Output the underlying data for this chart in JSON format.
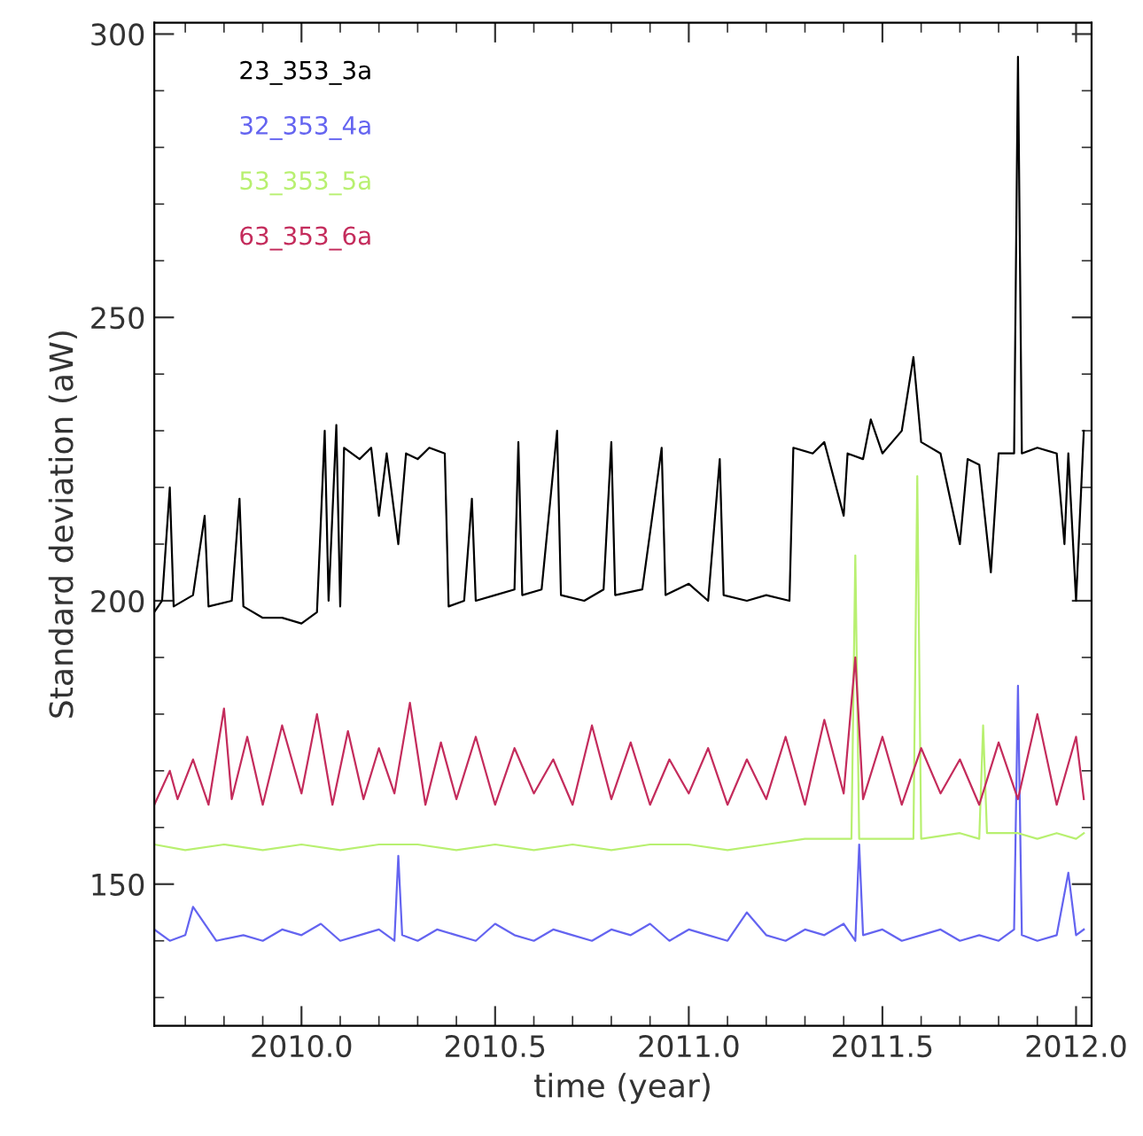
{
  "chart_data": {
    "type": "line",
    "xlabel": "time (year)",
    "ylabel": "Standard deviation (aW)",
    "xlim": [
      2009.62,
      2012.04
    ],
    "ylim": [
      125,
      302
    ],
    "xticks": [
      {
        "value": 2010.0,
        "label": "2010.0"
      },
      {
        "value": 2010.5,
        "label": "2010.5"
      },
      {
        "value": 2011.0,
        "label": "2011.0"
      },
      {
        "value": 2011.5,
        "label": "2011.5"
      },
      {
        "value": 2012.0,
        "label": "2012.0"
      }
    ],
    "yticks": [
      150,
      200,
      250,
      300
    ],
    "grid": false,
    "legend": "top left",
    "marker": "none",
    "line_style": "solid",
    "series": [
      {
        "name": "23_353_3a",
        "color": "#000000",
        "x": [
          2009.62,
          2009.64,
          2009.66,
          2009.67,
          2009.72,
          2009.75,
          2009.76,
          2009.82,
          2009.84,
          2009.85,
          2009.9,
          2009.95,
          2010.0,
          2010.04,
          2010.06,
          2010.07,
          2010.09,
          2010.1,
          2010.11,
          2010.15,
          2010.18,
          2010.2,
          2010.22,
          2010.25,
          2010.27,
          2010.3,
          2010.33,
          2010.37,
          2010.38,
          2010.42,
          2010.44,
          2010.45,
          2010.5,
          2010.55,
          2010.56,
          2010.57,
          2010.62,
          2010.66,
          2010.67,
          2010.73,
          2010.78,
          2010.8,
          2010.81,
          2010.88,
          2010.93,
          2010.94,
          2011.0,
          2011.05,
          2011.08,
          2011.09,
          2011.15,
          2011.2,
          2011.26,
          2011.27,
          2011.32,
          2011.35,
          2011.4,
          2011.41,
          2011.45,
          2011.47,
          2011.5,
          2011.55,
          2011.58,
          2011.6,
          2011.65,
          2011.7,
          2011.72,
          2011.75,
          2011.78,
          2011.8,
          2011.84,
          2011.85,
          2011.86,
          2011.9,
          2011.95,
          2011.97,
          2011.98,
          2012.0,
          2012.02
        ],
        "values": [
          198,
          200,
          220,
          199,
          201,
          215,
          199,
          200,
          218,
          199,
          197,
          197,
          196,
          198,
          230,
          200,
          231,
          199,
          227,
          225,
          227,
          215,
          226,
          210,
          226,
          225,
          227,
          226,
          199,
          200,
          218,
          200,
          201,
          202,
          228,
          201,
          202,
          230,
          201,
          200,
          202,
          228,
          201,
          202,
          227,
          201,
          203,
          200,
          225,
          201,
          200,
          201,
          200,
          227,
          226,
          228,
          215,
          226,
          225,
          232,
          226,
          230,
          243,
          228,
          226,
          210,
          225,
          224,
          205,
          226,
          226,
          296,
          226,
          227,
          226,
          210,
          226,
          200,
          230
        ]
      },
      {
        "name": "32_353_4a",
        "color": "#6464f0",
        "x": [
          2009.62,
          2009.66,
          2009.7,
          2009.72,
          2009.78,
          2009.85,
          2009.9,
          2009.95,
          2010.0,
          2010.05,
          2010.1,
          2010.15,
          2010.2,
          2010.24,
          2010.25,
          2010.26,
          2010.3,
          2010.35,
          2010.4,
          2010.45,
          2010.5,
          2010.55,
          2010.6,
          2010.65,
          2010.7,
          2010.75,
          2010.8,
          2010.85,
          2010.9,
          2010.95,
          2011.0,
          2011.05,
          2011.1,
          2011.15,
          2011.2,
          2011.25,
          2011.3,
          2011.35,
          2011.4,
          2011.43,
          2011.44,
          2011.45,
          2011.5,
          2011.55,
          2011.6,
          2011.65,
          2011.7,
          2011.75,
          2011.8,
          2011.84,
          2011.85,
          2011.86,
          2011.9,
          2011.95,
          2011.98,
          2012.0,
          2012.02
        ],
        "values": [
          142,
          140,
          141,
          146,
          140,
          141,
          140,
          142,
          141,
          143,
          140,
          141,
          142,
          140,
          155,
          141,
          140,
          142,
          141,
          140,
          143,
          141,
          140,
          142,
          141,
          140,
          142,
          141,
          143,
          140,
          142,
          141,
          140,
          145,
          141,
          140,
          142,
          141,
          143,
          140,
          157,
          141,
          142,
          140,
          141,
          142,
          140,
          141,
          140,
          142,
          185,
          141,
          140,
          141,
          152,
          141,
          142
        ]
      },
      {
        "name": "53_353_5a",
        "color": "#b8f070",
        "x": [
          2009.62,
          2009.7,
          2009.8,
          2009.9,
          2010.0,
          2010.1,
          2010.2,
          2010.3,
          2010.4,
          2010.5,
          2010.6,
          2010.7,
          2010.8,
          2010.9,
          2011.0,
          2011.1,
          2011.2,
          2011.3,
          2011.4,
          2011.42,
          2011.43,
          2011.44,
          2011.5,
          2011.58,
          2011.59,
          2011.6,
          2011.7,
          2011.75,
          2011.76,
          2011.77,
          2011.85,
          2011.9,
          2011.95,
          2012.0,
          2012.02
        ],
        "values": [
          157,
          156,
          157,
          156,
          157,
          156,
          157,
          157,
          156,
          157,
          156,
          157,
          156,
          157,
          157,
          156,
          157,
          158,
          158,
          158,
          208,
          158,
          158,
          158,
          222,
          158,
          159,
          158,
          178,
          159,
          159,
          158,
          159,
          158,
          159
        ]
      },
      {
        "name": "63_353_6a",
        "color": "#c42c5c",
        "x": [
          2009.62,
          2009.66,
          2009.68,
          2009.72,
          2009.76,
          2009.8,
          2009.82,
          2009.86,
          2009.9,
          2009.95,
          2010.0,
          2010.04,
          2010.08,
          2010.12,
          2010.16,
          2010.2,
          2010.24,
          2010.28,
          2010.32,
          2010.36,
          2010.4,
          2010.45,
          2010.5,
          2010.55,
          2010.6,
          2010.65,
          2010.7,
          2010.75,
          2010.8,
          2010.85,
          2010.9,
          2010.95,
          2011.0,
          2011.05,
          2011.1,
          2011.15,
          2011.2,
          2011.25,
          2011.3,
          2011.35,
          2011.4,
          2011.43,
          2011.45,
          2011.5,
          2011.55,
          2011.6,
          2011.65,
          2011.7,
          2011.75,
          2011.8,
          2011.85,
          2011.9,
          2011.95,
          2012.0,
          2012.02
        ],
        "values": [
          164,
          170,
          165,
          172,
          164,
          181,
          165,
          176,
          164,
          178,
          166,
          180,
          164,
          177,
          165,
          174,
          166,
          182,
          164,
          175,
          165,
          176,
          164,
          174,
          166,
          172,
          164,
          178,
          165,
          175,
          164,
          172,
          166,
          174,
          164,
          172,
          165,
          176,
          164,
          179,
          166,
          190,
          165,
          176,
          164,
          174,
          166,
          172,
          164,
          175,
          165,
          180,
          164,
          176,
          165
        ]
      }
    ]
  }
}
